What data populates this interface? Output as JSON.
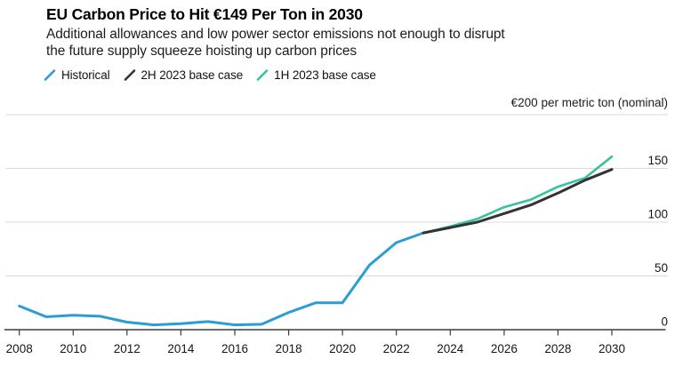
{
  "header": {
    "title": "EU Carbon Price to Hit €149 Per Ton in 2030",
    "subtitle_line1": "Additional allowances and low power sector emissions not enough to disrupt",
    "subtitle_line2": "the future supply squeeze hoisting up carbon prices"
  },
  "legend": [
    {
      "label": "Historical",
      "color": "#2B9CD4"
    },
    {
      "label": "2H 2023 base case",
      "color": "#333333"
    },
    {
      "label": "1H 2023 base case",
      "color": "#35C2A0"
    }
  ],
  "colors": {
    "background": "#ffffff",
    "gridline": "#dadada",
    "axis": "#3b3b3b",
    "tick_text": "#161616",
    "unit_text": "#1c1c1c"
  },
  "chart_data": {
    "type": "line",
    "title": "EU Carbon Price to Hit €149 Per Ton in 2030",
    "subtitle": "Additional allowances and low power sector emissions not enough to disrupt the future supply squeeze hoisting up carbon prices",
    "unit_label": "€200 per metric ton (nominal)",
    "xlabel": "",
    "ylabel": "€ per metric ton (nominal)",
    "xlim": [
      2008,
      2030
    ],
    "ylim": [
      0,
      200
    ],
    "grid": true,
    "legend_position": "top-left",
    "x_ticks": [
      2008,
      2010,
      2012,
      2014,
      2016,
      2018,
      2020,
      2022,
      2024,
      2026,
      2028,
      2030
    ],
    "y_tick_labels": [
      0,
      50,
      100,
      150
    ],
    "gridline_levels": [
      50,
      100,
      150,
      200
    ],
    "series": [
      {
        "name": "Historical",
        "color": "#2B9CD4",
        "stroke_width": 3,
        "x": [
          2008,
          2009,
          2010,
          2011,
          2012,
          2013,
          2014,
          2015,
          2016,
          2017,
          2018,
          2019,
          2020,
          2021,
          2022,
          2023
        ],
        "y": [
          22,
          12,
          13.5,
          12.5,
          7,
          4.5,
          5.5,
          7.5,
          4.5,
          5,
          16,
          25,
          25,
          60,
          81,
          90
        ]
      },
      {
        "name": "1H 2023 base case",
        "color": "#35C2A0",
        "stroke_width": 2.6,
        "x": [
          2023,
          2024,
          2025,
          2026,
          2027,
          2028,
          2029,
          2030
        ],
        "y": [
          90,
          96,
          103,
          114,
          121,
          133,
          141,
          161
        ]
      },
      {
        "name": "2H 2023 base case",
        "color": "#333333",
        "stroke_width": 3,
        "x": [
          2023,
          2024,
          2025,
          2026,
          2027,
          2028,
          2029,
          2030
        ],
        "y": [
          90,
          95,
          100,
          108,
          116,
          127,
          139,
          149
        ]
      }
    ]
  }
}
